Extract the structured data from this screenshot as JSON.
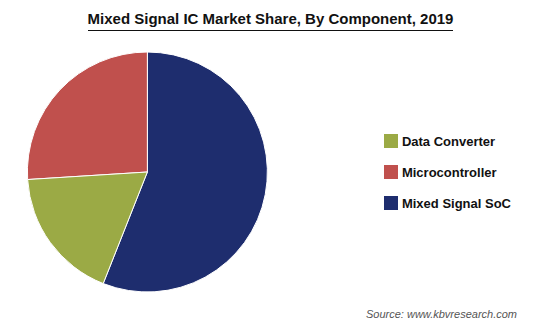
{
  "chart_data": {
    "type": "pie",
    "title": "Mixed Signal IC Market Share, By Component, 2019",
    "categories": [
      "Mixed Signal SoC",
      "Microcontroller",
      "Data Converter"
    ],
    "values": [
      56,
      26,
      18
    ],
    "colors": [
      "#1e2d6e",
      "#c0504d",
      "#9baa45"
    ],
    "legend": "right",
    "annotations": [
      "Source: www.kbvresearch.com"
    ]
  }
}
